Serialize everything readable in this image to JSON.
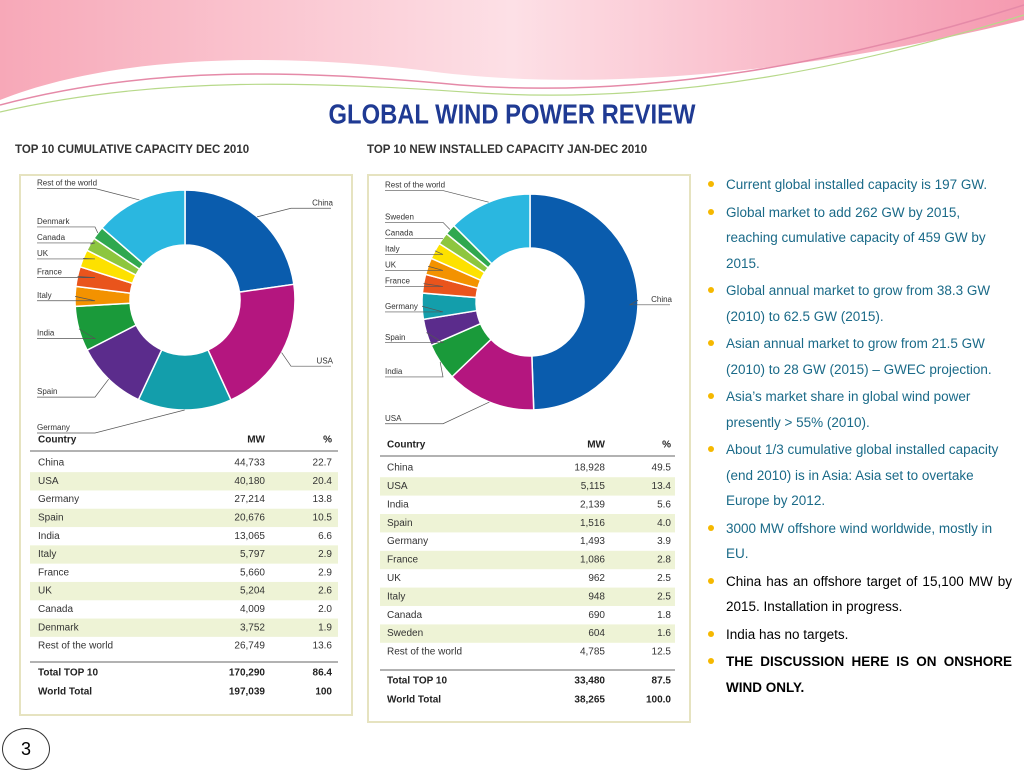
{
  "title": "GLOBAL WIND POWER REVIEW",
  "chart_data": [
    {
      "type": "pie",
      "title": "TOP 10 CUMULATIVE CAPACITY DEC 2010",
      "categories": [
        "China",
        "USA",
        "Germany",
        "Spain",
        "India",
        "Italy",
        "France",
        "UK",
        "Canada",
        "Denmark",
        "Rest of the world"
      ],
      "values": [
        22.7,
        20.4,
        13.8,
        10.5,
        6.6,
        2.9,
        2.9,
        2.6,
        2.0,
        1.9,
        13.6
      ],
      "colors": [
        "#0a5cad",
        "#b4167f",
        "#139eab",
        "#5b2c8c",
        "#1a9a3a",
        "#f39200",
        "#e9541c",
        "#fde100",
        "#8dc63f",
        "#2fa84f",
        "#2ab7e0"
      ],
      "table": {
        "columns": [
          "Country",
          "MW",
          "%"
        ],
        "rows": [
          [
            "China",
            "44,733",
            "22.7"
          ],
          [
            "USA",
            "40,180",
            "20.4"
          ],
          [
            "Germany",
            "27,214",
            "13.8"
          ],
          [
            "Spain",
            "20,676",
            "10.5"
          ],
          [
            "India",
            "13,065",
            "6.6"
          ],
          [
            "Italy",
            "5,797",
            "2.9"
          ],
          [
            "France",
            "5,660",
            "2.9"
          ],
          [
            "UK",
            "5,204",
            "2.6"
          ],
          [
            "Canada",
            "4,009",
            "2.0"
          ],
          [
            "Denmark",
            "3,752",
            "1.9"
          ],
          [
            "Rest of the world",
            "26,749",
            "13.6"
          ]
        ],
        "totals": [
          [
            "Total TOP 10",
            "170,290",
            "86.4"
          ],
          [
            "World Total",
            "197,039",
            "100"
          ]
        ]
      }
    },
    {
      "type": "pie",
      "title": "TOP 10 NEW INSTALLED CAPACITY JAN-DEC 2010",
      "categories": [
        "China",
        "USA",
        "India",
        "Spain",
        "Germany",
        "France",
        "UK",
        "Italy",
        "Canada",
        "Sweden",
        "Rest of the world"
      ],
      "values": [
        49.5,
        13.4,
        5.6,
        4.0,
        3.9,
        2.8,
        2.5,
        2.5,
        1.8,
        1.6,
        12.5
      ],
      "colors": [
        "#0a5cad",
        "#b4167f",
        "#1a9a3a",
        "#5b2c8c",
        "#139eab",
        "#e9541c",
        "#f39200",
        "#fde100",
        "#8dc63f",
        "#2fa84f",
        "#2ab7e0"
      ],
      "table": {
        "columns": [
          "Country",
          "MW",
          "%"
        ],
        "rows": [
          [
            "China",
            "18,928",
            "49.5"
          ],
          [
            "USA",
            "5,115",
            "13.4"
          ],
          [
            "India",
            "2,139",
            "5.6"
          ],
          [
            "Spain",
            "1,516",
            "4.0"
          ],
          [
            "Germany",
            "1,493",
            "3.9"
          ],
          [
            "France",
            "1,086",
            "2.8"
          ],
          [
            "UK",
            "962",
            "2.5"
          ],
          [
            "Italy",
            "948",
            "2.5"
          ],
          [
            "Canada",
            "690",
            "1.8"
          ],
          [
            "Sweden",
            "604",
            "1.6"
          ],
          [
            "Rest of the world",
            "4,785",
            "12.5"
          ]
        ],
        "totals": [
          [
            "Total TOP 10",
            "33,480",
            "87.5"
          ],
          [
            "World Total",
            "38,265",
            "100.0"
          ]
        ]
      }
    }
  ],
  "bullets": [
    "Current global installed capacity is 197 GW.",
    "Global market to add 262 GW by 2015, reaching cumulative capacity of 459 GW by 2015.",
    "Global annual market to grow from 38.3 GW (2010) to 62.5 GW (2015).",
    "Asian annual market to grow from 21.5 GW (2010) to 28 GW (2015) – GWEC projection.",
    "Asia’s market share in global wind power presently > 55% (2010).",
    "About 1/3 cumulative global installed capacity (end 2010) is in Asia: Asia set to overtake Europe by 2012.",
    "3000 MW offshore wind worldwide, mostly in EU.",
    "China has an offshore target of 15,100 MW by 2015. Installation in progress.",
    "India has no targets.",
    "THE DISCUSSION HERE IS ON ONSHORE WIND ONLY."
  ],
  "page_number": "3"
}
